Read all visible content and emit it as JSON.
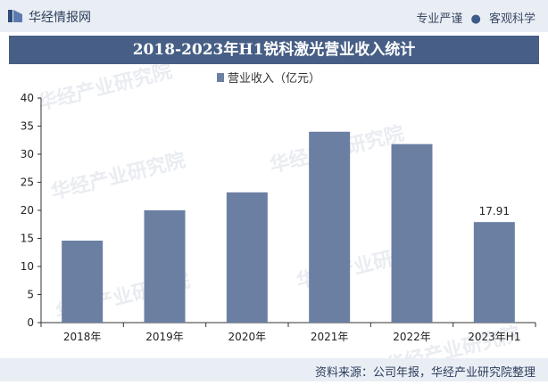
{
  "header": {
    "brand": "华经情报网",
    "slogan_left": "专业严谨",
    "slogan_right": "客观科学",
    "logo_icon": "logo-bars-icon"
  },
  "watermark": "华经产业研究院",
  "source": "资料来源：公司年报，华经产业研究院整理",
  "colors": {
    "bar": "#6b7fa3",
    "title_band": "#475f86",
    "header_bg": "#e9edf4"
  },
  "chart_data": {
    "type": "bar",
    "title": "2018-2023年H1锐科激光营业收入统计",
    "legend": "营业收入（亿元）",
    "legend_position": "top-center",
    "categories": [
      "2018年",
      "2019年",
      "2020年",
      "2021年",
      "2022年",
      "2023年H1"
    ],
    "series": [
      {
        "name": "营业收入（亿元）",
        "values": [
          14.6,
          20.0,
          23.2,
          34.0,
          31.8,
          17.91
        ]
      }
    ],
    "data_labels": [
      "",
      "",
      "",
      "",
      "",
      "17.91"
    ],
    "ylim": [
      0,
      40
    ],
    "yticks": [
      0,
      5,
      10,
      15,
      20,
      25,
      30,
      35,
      40
    ],
    "grid": false
  }
}
